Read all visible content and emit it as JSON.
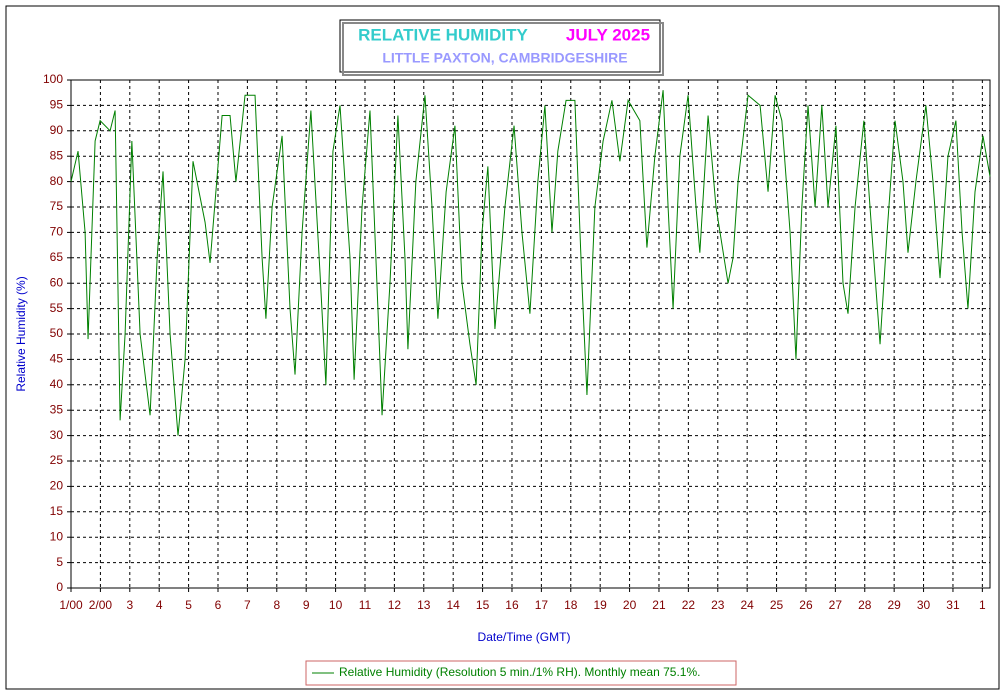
{
  "chart_data": {
    "type": "line",
    "title": "RELATIVE HUMIDITY",
    "period": "JULY 2025",
    "subtitle": "LITTLE PAXTON, CAMBRIDGESHIRE",
    "x_label": "Date/Time (GMT)",
    "y_label": "Relative Humidity (%)",
    "grid": true,
    "xlim": [
      0,
      31.26
    ],
    "ylim": [
      0,
      100
    ],
    "xticks": [
      {
        "value": 0,
        "label": "1/00"
      },
      {
        "value": 1,
        "label": "2/00"
      },
      {
        "value": 2,
        "label": "3"
      },
      {
        "value": 3,
        "label": "4"
      },
      {
        "value": 4,
        "label": "5"
      },
      {
        "value": 5,
        "label": "6"
      },
      {
        "value": 6,
        "label": "7"
      },
      {
        "value": 7,
        "label": "8"
      },
      {
        "value": 8,
        "label": "9"
      },
      {
        "value": 9,
        "label": "10"
      },
      {
        "value": 10,
        "label": "11"
      },
      {
        "value": 11,
        "label": "12"
      },
      {
        "value": 12,
        "label": "13"
      },
      {
        "value": 13,
        "label": "14"
      },
      {
        "value": 14,
        "label": "15"
      },
      {
        "value": 15,
        "label": "16"
      },
      {
        "value": 16,
        "label": "17"
      },
      {
        "value": 17,
        "label": "18"
      },
      {
        "value": 18,
        "label": "19"
      },
      {
        "value": 19,
        "label": "20"
      },
      {
        "value": 20,
        "label": "21"
      },
      {
        "value": 21,
        "label": "22"
      },
      {
        "value": 22,
        "label": "23"
      },
      {
        "value": 23,
        "label": "24"
      },
      {
        "value": 24,
        "label": "25"
      },
      {
        "value": 25,
        "label": "26"
      },
      {
        "value": 26,
        "label": "27"
      },
      {
        "value": 27,
        "label": "28"
      },
      {
        "value": 28,
        "label": "29"
      },
      {
        "value": 29,
        "label": "30"
      },
      {
        "value": 30,
        "label": "31"
      },
      {
        "value": 31,
        "label": "1"
      }
    ],
    "yticks": [
      0,
      5,
      10,
      15,
      20,
      25,
      30,
      35,
      40,
      45,
      50,
      55,
      60,
      65,
      70,
      75,
      80,
      85,
      90,
      95,
      100
    ],
    "x": [
      0,
      0.24,
      0.48,
      0.58,
      0.82,
      0.99,
      1.33,
      1.5,
      1.67,
      1.84,
      2.07,
      2.35,
      2.69,
      2.93,
      3.13,
      3.37,
      3.64,
      3.88,
      4.15,
      4.56,
      4.73,
      4.9,
      5.14,
      5.41,
      5.61,
      5.92,
      6.26,
      6.5,
      6.63,
      6.84,
      7.18,
      7.45,
      7.62,
      7.86,
      8.16,
      8.47,
      8.67,
      8.91,
      9.15,
      9.49,
      9.63,
      9.9,
      10.17,
      10.44,
      10.58,
      10.85,
      11.12,
      11.36,
      11.46,
      11.73,
      12.04,
      12.28,
      12.48,
      12.76,
      13.06,
      13.3,
      13.57,
      13.78,
      13.98,
      14.18,
      14.42,
      14.76,
      15.07,
      15.34,
      15.61,
      15.88,
      16.12,
      16.36,
      16.56,
      16.84,
      17.14,
      17.38,
      17.55,
      17.82,
      18.1,
      18.4,
      18.67,
      18.95,
      19.35,
      19.59,
      19.86,
      20.14,
      20.31,
      20.48,
      20.71,
      20.99,
      21.26,
      21.39,
      21.67,
      21.94,
      22.35,
      22.52,
      22.69,
      23.03,
      23.44,
      23.71,
      23.95,
      24.18,
      24.46,
      24.66,
      24.86,
      25.07,
      25.31,
      25.54,
      25.75,
      26.02,
      26.26,
      26.43,
      26.67,
      26.97,
      27.24,
      27.52,
      27.76,
      28.03,
      28.3,
      28.47,
      28.74,
      29.08,
      29.32,
      29.56,
      29.83,
      30.1,
      30.31,
      30.51,
      30.75,
      31.02,
      31.26
    ],
    "series": [
      {
        "name": "Relative Humidity (Resolution 5 min./1% RH). Monthly mean 75.1%.",
        "color": "#008000",
        "values": [
          80,
          86,
          70,
          49,
          88,
          92,
          90,
          94,
          33,
          50,
          88,
          50,
          34,
          65,
          82,
          50,
          30,
          45,
          84,
          72,
          64,
          76,
          93,
          93,
          80,
          97,
          97,
          65,
          53,
          75,
          89,
          55,
          42,
          70,
          94,
          62,
          40,
          86,
          95,
          65,
          41,
          75,
          94,
          55,
          34,
          60,
          93,
          65,
          47,
          80,
          97,
          75,
          53,
          78,
          91,
          60,
          48,
          40,
          70,
          83,
          51,
          75,
          91,
          70,
          54,
          80,
          95,
          70,
          86,
          96,
          96,
          60,
          38,
          75,
          88,
          96,
          84,
          96,
          92,
          67,
          85,
          98,
          75,
          55,
          85,
          97,
          75,
          66,
          93,
          75,
          60,
          65,
          80,
          97,
          95,
          78,
          97,
          92,
          70,
          45,
          75,
          95,
          75,
          95,
          75,
          91,
          60,
          54,
          75,
          92,
          70,
          48,
          70,
          92,
          80,
          66,
          80,
          95,
          80,
          61,
          85,
          92,
          70,
          55,
          78,
          89,
          81
        ]
      }
    ]
  }
}
